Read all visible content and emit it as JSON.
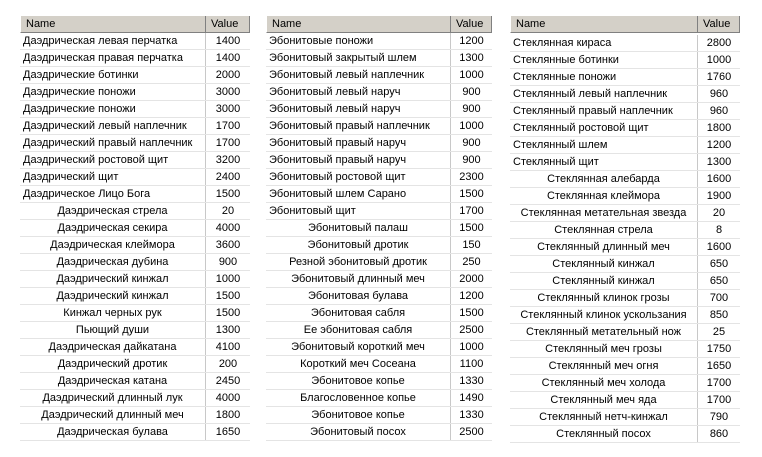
{
  "tables": [
    {
      "headers": [
        "Name",
        "Value"
      ],
      "rows": [
        [
          "Даэдрическая левая перчатка",
          1400
        ],
        [
          "Даэдрическая правая перчатка",
          1400
        ],
        [
          "Даэдрические ботинки",
          2000
        ],
        [
          "Даэдрические поножи",
          3000
        ],
        [
          "Даэдрические поножи",
          3000
        ],
        [
          "Даэдрический левый наплечник",
          1700
        ],
        [
          "Даэдрический правый наплечник",
          1700
        ],
        [
          "Даэдрический ростовой щит",
          3200
        ],
        [
          "Даэдрический щит",
          2400
        ],
        [
          "Даэдрическое Лицо Бога",
          1500
        ],
        [
          "Даэдрическая стрела",
          20
        ],
        [
          "Даэдрическая секира",
          4000
        ],
        [
          "Даэдрическая клеймора",
          3600
        ],
        [
          "Даэдрическая дубина",
          900
        ],
        [
          "Даэдрический кинжал",
          1000
        ],
        [
          "Даэдрический кинжал",
          1500
        ],
        [
          "Кинжал черных рук",
          1500
        ],
        [
          "Пьющий души",
          1300
        ],
        [
          "Даэдрическая дайкатана",
          4100
        ],
        [
          "Даэдрический дротик",
          200
        ],
        [
          "Даэдрическая катана",
          2450
        ],
        [
          "Даэдрический длинный лук",
          4000
        ],
        [
          "Даэдрический длинный меч",
          1800
        ],
        [
          "Даэдрическая булава",
          1650
        ]
      ]
    },
    {
      "headers": [
        "Name",
        "Value"
      ],
      "rows": [
        [
          "Эбонитовые поножи",
          1200
        ],
        [
          "Эбонитовый закрытый шлем",
          1300
        ],
        [
          "Эбонитовый левый наплечник",
          1000
        ],
        [
          "Эбонитовый левый наруч",
          900
        ],
        [
          "Эбонитовый левый наруч",
          900
        ],
        [
          "Эбонитовый правый наплечник",
          1000
        ],
        [
          "Эбонитовый правый наруч",
          900
        ],
        [
          "Эбонитовый правый наруч",
          900
        ],
        [
          "Эбонитовый ростовой щит",
          2300
        ],
        [
          "Эбонитовый шлем Сарано",
          1500
        ],
        [
          "Эбонитовый щит",
          1700
        ],
        [
          "Эбонитовый палаш",
          1500
        ],
        [
          "Эбонитовый дротик",
          150
        ],
        [
          "Резной эбонитовый дротик",
          250
        ],
        [
          "Эбонитовый длинный меч",
          2000
        ],
        [
          "Эбонитовая булава",
          1200
        ],
        [
          "Эбонитовая сабля",
          1500
        ],
        [
          "Ее эбонитовая сабля",
          2500
        ],
        [
          "Эбонитовый короткий меч",
          1000
        ],
        [
          "Короткий меч Сосеана",
          1100
        ],
        [
          "Эбонитовое копье",
          1330
        ],
        [
          "Благословенное копье",
          1490
        ],
        [
          "Эбонитовое копье",
          1330
        ],
        [
          "Эбонитовый посох",
          2500
        ]
      ]
    },
    {
      "headers": [
        "Name",
        "Value"
      ],
      "rows": [
        [
          "Стеклянная кираса",
          2800
        ],
        [
          "Стеклянные ботинки",
          1000
        ],
        [
          "Стеклянные поножи",
          1760
        ],
        [
          "Стеклянный левый наплечник",
          960
        ],
        [
          "Стеклянный правый наплечник",
          960
        ],
        [
          "Стеклянный ростовой щит",
          1800
        ],
        [
          "Стеклянный шлем",
          1200
        ],
        [
          "Стеклянный щит",
          1300
        ],
        [
          "Стеклянная алебарда",
          1600
        ],
        [
          "Стеклянная клеймора",
          1900
        ],
        [
          "Стеклянная метательная звезда",
          20
        ],
        [
          "Стеклянная стрела",
          8
        ],
        [
          "Стеклянный длинный меч",
          1600
        ],
        [
          "Стеклянный кинжал",
          650
        ],
        [
          "Стеклянный кинжал",
          650
        ],
        [
          "Стеклянный клинок грозы",
          700
        ],
        [
          "Стеклянный клинок ускользания",
          850
        ],
        [
          "Стеклянный метательный нож",
          25
        ],
        [
          "Стеклянный меч грозы",
          1750
        ],
        [
          "Стеклянный меч огня",
          1650
        ],
        [
          "Стеклянный меч холода",
          1700
        ],
        [
          "Стеклянный меч яда",
          1700
        ],
        [
          "Стеклянный нетч-кинжал",
          790
        ],
        [
          "Стеклянный посох",
          860
        ]
      ]
    }
  ]
}
